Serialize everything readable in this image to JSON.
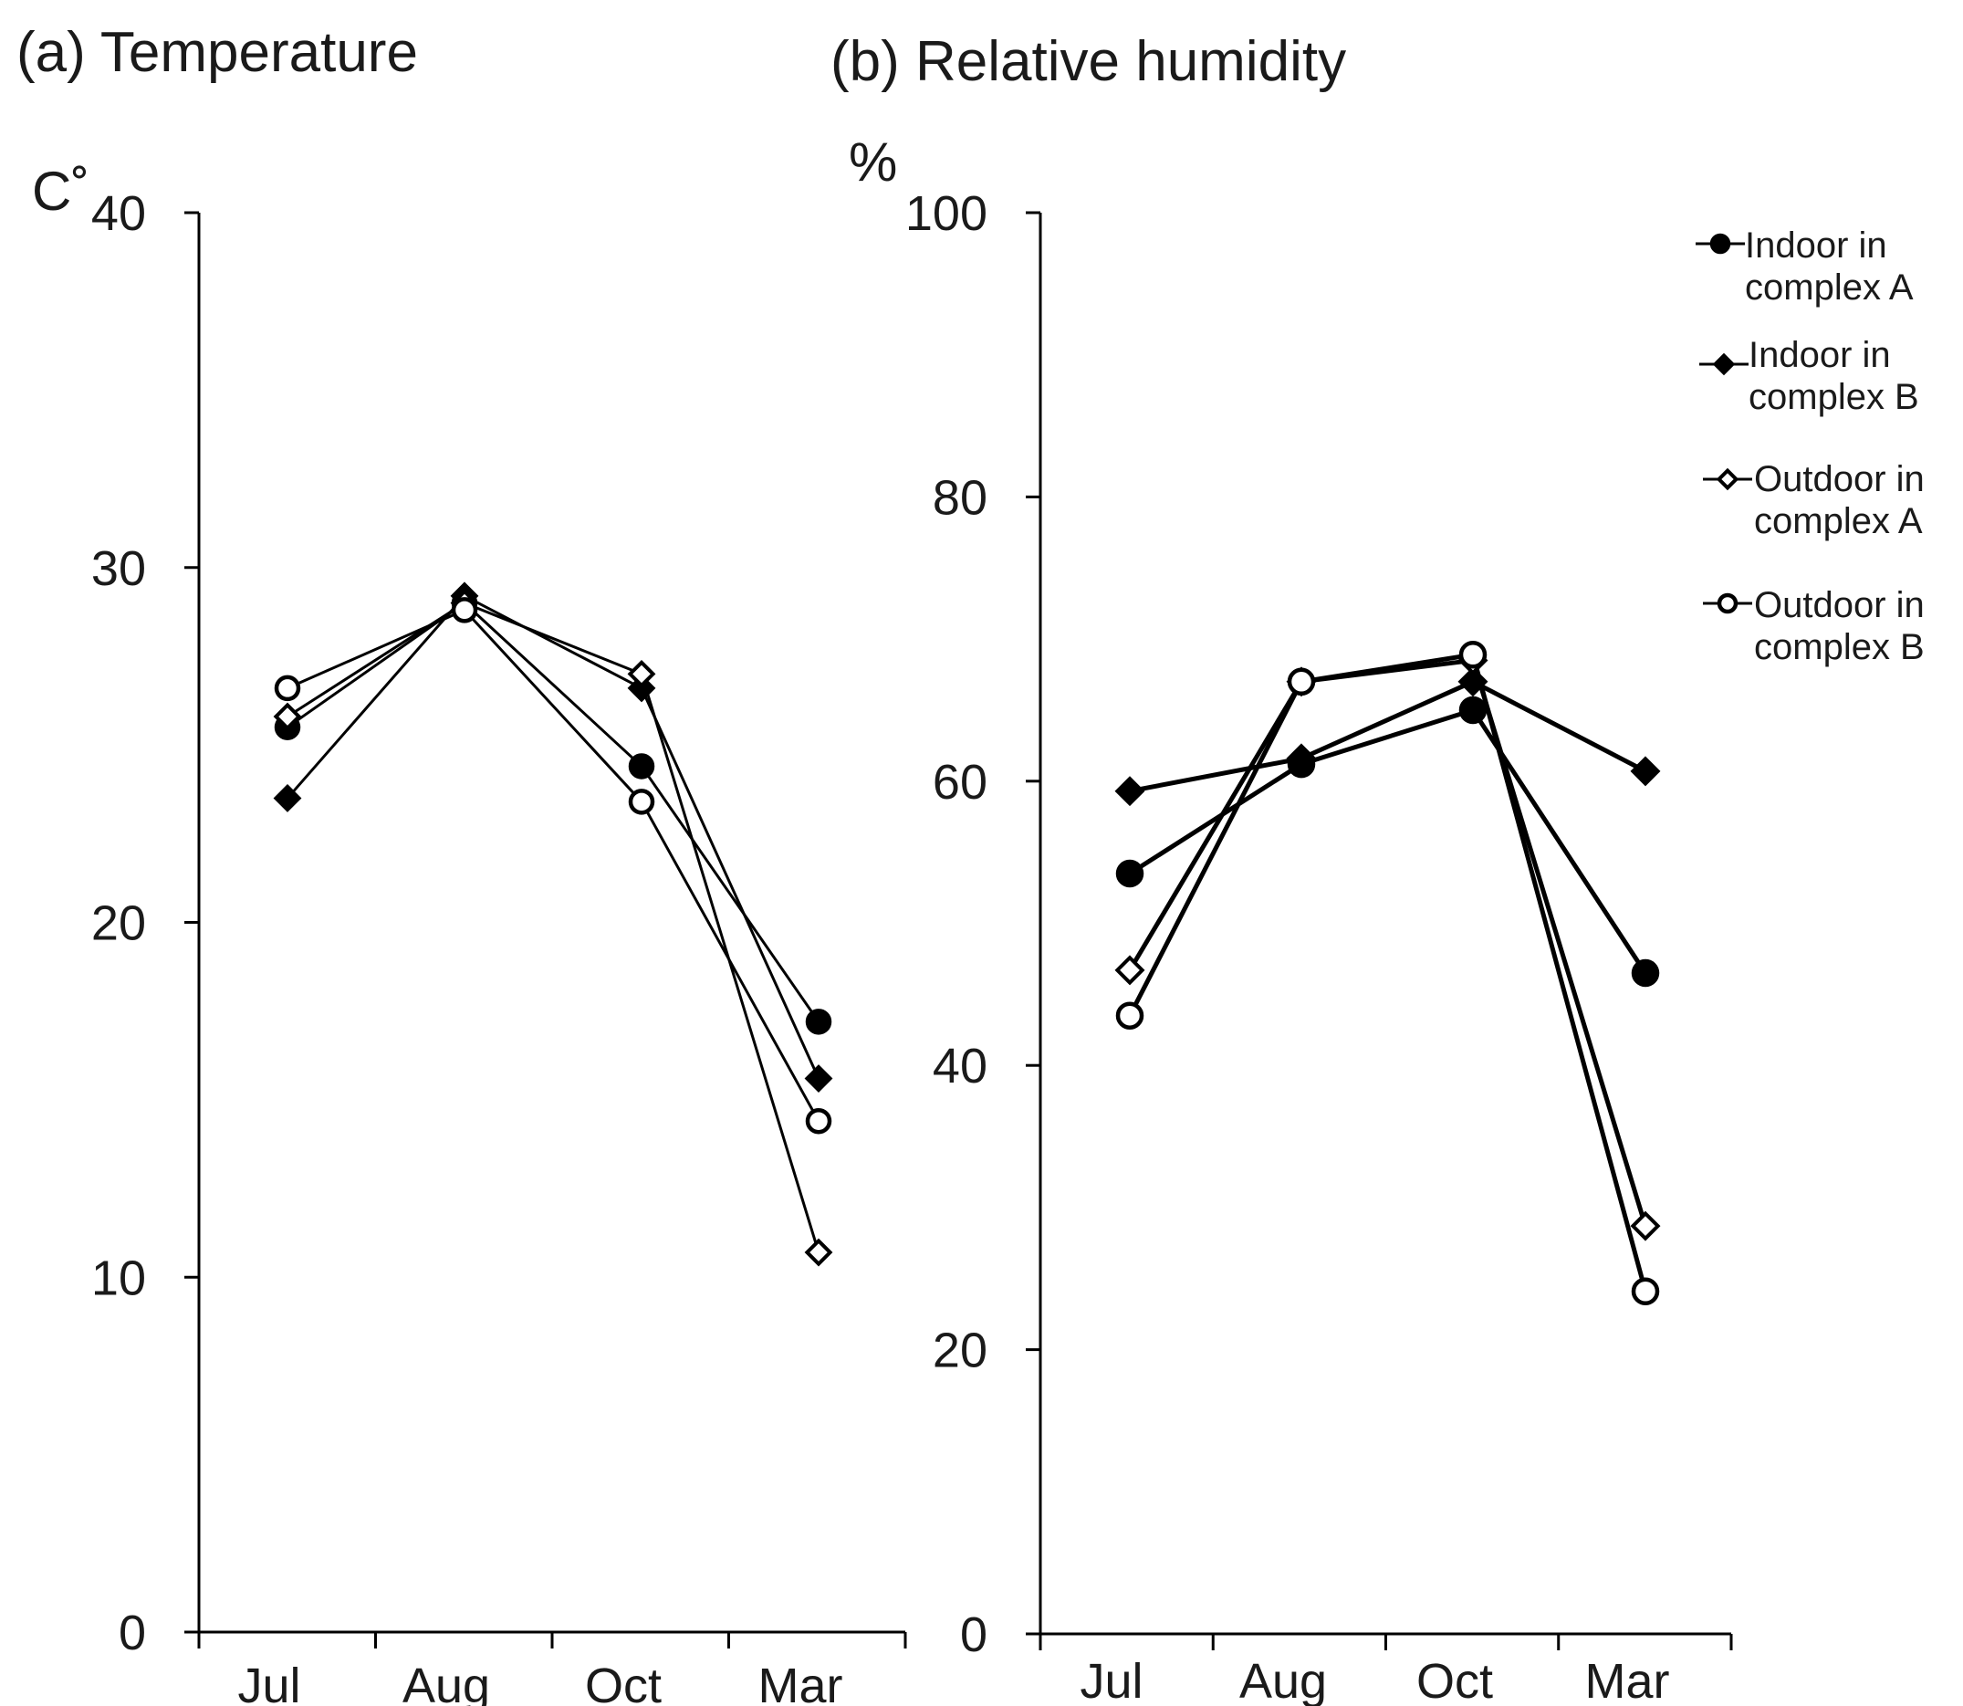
{
  "chart_data": [
    {
      "type": "line",
      "title": "(a) Temperature",
      "ylabel": "C˚",
      "categories": [
        "Jul",
        "Aug",
        "Oct",
        "Mar"
      ],
      "ylim": [
        0,
        40
      ],
      "yticks": [
        0,
        10,
        20,
        30,
        40
      ],
      "series": [
        {
          "name": "Indoor in complex A",
          "marker": "circle-filled",
          "values": [
            25.5,
            29.0,
            24.4,
            17.2
          ]
        },
        {
          "name": "Indoor in complex B",
          "marker": "diamond-filled",
          "values": [
            23.5,
            29.2,
            26.6,
            15.6
          ]
        },
        {
          "name": "Outdoor in complex A",
          "marker": "diamond-open",
          "values": [
            25.8,
            29.0,
            27.0,
            10.7
          ]
        },
        {
          "name": "Outdoor in complex B",
          "marker": "circle-open",
          "values": [
            26.6,
            28.8,
            23.4,
            14.4
          ]
        }
      ]
    },
    {
      "type": "line",
      "title": "(b) Relative humidity",
      "ylabel": "%",
      "categories": [
        "Jul",
        "Aug",
        "Oct",
        "Mar"
      ],
      "ylim": [
        0,
        100
      ],
      "yticks": [
        0,
        20,
        40,
        60,
        80,
        100
      ],
      "series": [
        {
          "name": "Indoor in complex A",
          "marker": "circle-filled",
          "values": [
            53.5,
            61.2,
            65.0,
            46.5
          ]
        },
        {
          "name": "Indoor in complex B",
          "marker": "diamond-filled",
          "values": [
            59.3,
            61.6,
            67.0,
            60.7
          ]
        },
        {
          "name": "Outdoor in complex A",
          "marker": "diamond-open",
          "values": [
            46.7,
            67.0,
            68.5,
            28.7
          ]
        },
        {
          "name": "Outdoor in complex B",
          "marker": "circle-open",
          "values": [
            43.5,
            67.0,
            68.9,
            24.1
          ]
        }
      ]
    }
  ],
  "legend": {
    "items": [
      {
        "line1": "Indoor in",
        "line2": "complex A",
        "marker": "circle-filled"
      },
      {
        "line1": "Indoor in",
        "line2": "complex B",
        "marker": "diamond-filled"
      },
      {
        "line1": "Outdoor in",
        "line2": "complex A",
        "marker": "diamond-open"
      },
      {
        "line1": "Outdoor in",
        "line2": "complex B",
        "marker": "circle-open"
      }
    ]
  }
}
